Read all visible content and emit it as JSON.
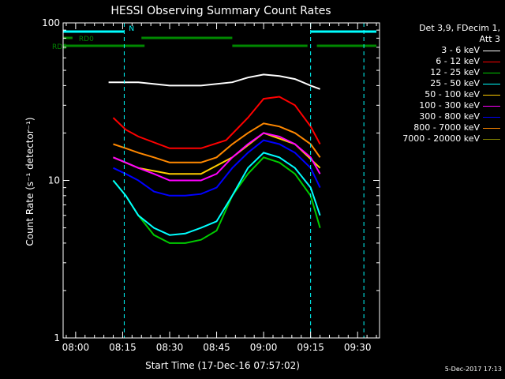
{
  "chart_data": {
    "type": "line",
    "title": "HESSI Observing Summary Count Rates",
    "xlabel": "Start Time (17-Dec-16 07:57:02)",
    "ylabel": "Count Rate (s⁻¹ detector⁻¹)",
    "y_scale": "log",
    "ylim": [
      1,
      100
    ],
    "y_ticks": [
      "1",
      "10",
      "100"
    ],
    "x_ticks": [
      "08:00",
      "08:15",
      "08:30",
      "08:45",
      "09:00",
      "09:15",
      "09:30"
    ],
    "x_tick_minutes": [
      0,
      15,
      30,
      45,
      60,
      75,
      90
    ],
    "x_range_minutes": [
      -4,
      97
    ],
    "series": [
      {
        "name": "3 - 6 keV",
        "color": "#000000",
        "points": [
          [
            10.5,
            42
          ],
          [
            20,
            42
          ],
          [
            30,
            40
          ],
          [
            40,
            40
          ],
          [
            50,
            42
          ],
          [
            55,
            45
          ],
          [
            60,
            47
          ],
          [
            65,
            46
          ],
          [
            70,
            44
          ],
          [
            75,
            40
          ],
          [
            78,
            38
          ]
        ]
      },
      {
        "name": "6 - 12 keV",
        "color": "#ff0000",
        "points": [
          [
            12,
            25
          ],
          [
            16,
            21
          ],
          [
            20,
            19
          ],
          [
            30,
            16
          ],
          [
            40,
            16
          ],
          [
            48,
            18
          ],
          [
            55,
            25
          ],
          [
            60,
            33
          ],
          [
            65,
            34
          ],
          [
            70,
            30
          ],
          [
            75,
            22
          ],
          [
            78,
            17
          ]
        ]
      },
      {
        "name": "12 - 25 keV",
        "color": "#00cc00",
        "points": [
          [
            12,
            10
          ],
          [
            16,
            8
          ],
          [
            20,
            6
          ],
          [
            25,
            4.5
          ],
          [
            30,
            4
          ],
          [
            35,
            4
          ],
          [
            40,
            4.2
          ],
          [
            45,
            4.8
          ],
          [
            50,
            8
          ],
          [
            55,
            11
          ],
          [
            60,
            14
          ],
          [
            65,
            13
          ],
          [
            70,
            11
          ],
          [
            75,
            8
          ],
          [
            78,
            5
          ]
        ]
      },
      {
        "name": "25 - 50 keV",
        "color": "#00ffff",
        "points": [
          [
            12,
            10
          ],
          [
            16,
            8
          ],
          [
            20,
            6
          ],
          [
            25,
            5
          ],
          [
            30,
            4.5
          ],
          [
            35,
            4.6
          ],
          [
            40,
            5
          ],
          [
            45,
            5.5
          ],
          [
            50,
            8
          ],
          [
            55,
            12
          ],
          [
            60,
            15
          ],
          [
            65,
            14
          ],
          [
            70,
            12
          ],
          [
            75,
            9
          ],
          [
            78,
            6
          ]
        ]
      },
      {
        "name": "50 - 100 keV",
        "color": "#ffcc00",
        "points": [
          [
            12,
            14
          ],
          [
            20,
            12
          ],
          [
            30,
            11
          ],
          [
            40,
            11
          ],
          [
            50,
            14
          ],
          [
            60,
            20
          ],
          [
            70,
            17
          ],
          [
            78,
            12
          ]
        ]
      },
      {
        "name": "100 - 300 keV",
        "color": "#ff00ff",
        "points": [
          [
            12,
            14
          ],
          [
            16,
            13
          ],
          [
            20,
            12
          ],
          [
            25,
            11
          ],
          [
            30,
            10
          ],
          [
            35,
            10
          ],
          [
            40,
            10
          ],
          [
            45,
            11
          ],
          [
            50,
            14
          ],
          [
            55,
            17
          ],
          [
            60,
            20
          ],
          [
            65,
            19
          ],
          [
            70,
            17
          ],
          [
            75,
            14
          ],
          [
            78,
            11
          ]
        ]
      },
      {
        "name": "300 - 800 keV",
        "color": "#0000ff",
        "points": [
          [
            12,
            12
          ],
          [
            16,
            11
          ],
          [
            20,
            10
          ],
          [
            25,
            8.5
          ],
          [
            30,
            8
          ],
          [
            35,
            8
          ],
          [
            40,
            8.2
          ],
          [
            45,
            9
          ],
          [
            50,
            12
          ],
          [
            55,
            15
          ],
          [
            60,
            18
          ],
          [
            65,
            17
          ],
          [
            70,
            15
          ],
          [
            75,
            12
          ],
          [
            78,
            9
          ]
        ]
      },
      {
        "name": "800 - 7000 keV",
        "color": "#ff8800",
        "points": [
          [
            12,
            17
          ],
          [
            16,
            16
          ],
          [
            20,
            15
          ],
          [
            25,
            14
          ],
          [
            30,
            13
          ],
          [
            35,
            13
          ],
          [
            40,
            13
          ],
          [
            45,
            14
          ],
          [
            50,
            17
          ],
          [
            55,
            20
          ],
          [
            60,
            23
          ],
          [
            65,
            22
          ],
          [
            70,
            20
          ],
          [
            75,
            17
          ],
          [
            78,
            14
          ]
        ]
      },
      {
        "name": "7000 - 20000 keV",
        "color": "#808000",
        "points": []
      }
    ],
    "flags": [
      {
        "label": "N",
        "color": "#00ffff",
        "intervals": [
          [
            -4,
            15.5
          ],
          [
            75,
            96
          ]
        ]
      },
      {
        "label": "RD0",
        "color": "#008800",
        "intervals": [
          [
            -4,
            -1
          ],
          [
            21,
            50
          ]
        ]
      },
      {
        "label": "RD6",
        "color": "#008800",
        "intervals": [
          [
            -4,
            22
          ],
          [
            50,
            74
          ],
          [
            77,
            96
          ]
        ]
      }
    ],
    "dashed_vlines_minutes": [
      15.5,
      75,
      92
    ]
  },
  "legend": {
    "header_line1": "Det 3,9, FDecim 1,",
    "header_line2": "Att 3"
  },
  "footer": {
    "timestamp": "5-Dec-2017 17:13"
  }
}
